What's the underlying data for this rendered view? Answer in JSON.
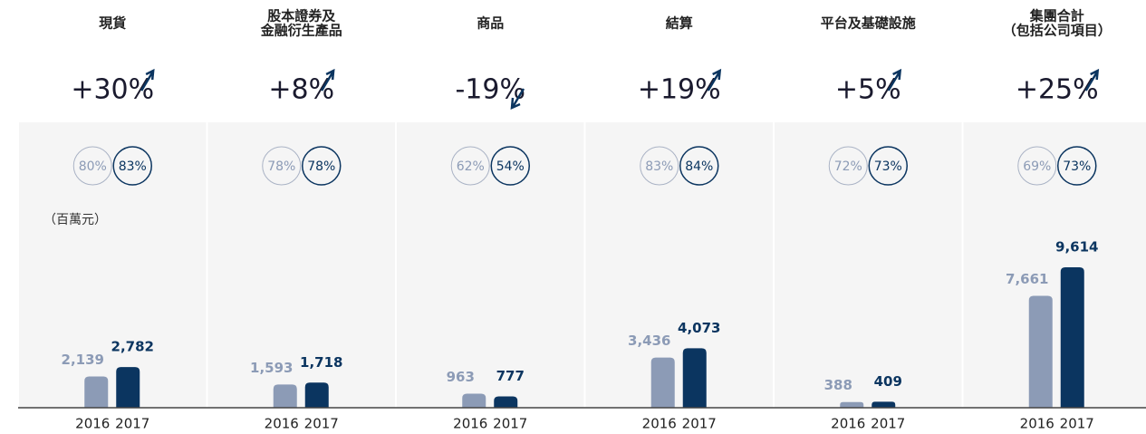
{
  "chart_data": [
    {
      "type": "bar",
      "title": [
        "現貨"
      ],
      "change": "+30%",
      "rings": [
        "80%",
        "83%"
      ],
      "unit": "（百萬元）",
      "categories": [
        "2016",
        "2017"
      ],
      "values": [
        2139,
        2782
      ],
      "value_labels": [
        "2,139",
        "2,782"
      ],
      "colors": [
        "#8c9bb6",
        "#0b3560"
      ]
    },
    {
      "type": "bar",
      "title": [
        "股本證券及",
        "金融衍生產品"
      ],
      "change": "+8%",
      "rings": [
        "78%",
        "78%"
      ],
      "categories": [
        "2016",
        "2017"
      ],
      "values": [
        1593,
        1718
      ],
      "value_labels": [
        "1,593",
        "1,718"
      ],
      "colors": [
        "#8c9bb6",
        "#0b3560"
      ]
    },
    {
      "type": "bar",
      "title": [
        "商品"
      ],
      "change": "-19%",
      "rings": [
        "62%",
        "54%"
      ],
      "categories": [
        "2016",
        "2017"
      ],
      "values": [
        963,
        777
      ],
      "value_labels": [
        "963",
        "777"
      ],
      "colors": [
        "#8c9bb6",
        "#0b3560"
      ]
    },
    {
      "type": "bar",
      "title": [
        "結算"
      ],
      "change": "+19%",
      "rings": [
        "83%",
        "84%"
      ],
      "categories": [
        "2016",
        "2017"
      ],
      "values": [
        3436,
        4073
      ],
      "value_labels": [
        "3,436",
        "4,073"
      ],
      "colors": [
        "#8c9bb6",
        "#0b3560"
      ]
    },
    {
      "type": "bar",
      "title": [
        "平台及基礎設施"
      ],
      "change": "+5%",
      "rings": [
        "72%",
        "73%"
      ],
      "categories": [
        "2016",
        "2017"
      ],
      "values": [
        388,
        409
      ],
      "value_labels": [
        "388",
        "409"
      ],
      "colors": [
        "#8c9bb6",
        "#0b3560"
      ]
    },
    {
      "type": "bar",
      "title": [
        "集團合計",
        "（包括公司項目）"
      ],
      "change": "+25%",
      "rings": [
        "69%",
        "73%"
      ],
      "categories": [
        "2016",
        "2017"
      ],
      "values": [
        7661,
        9614
      ],
      "value_labels": [
        "7,661",
        "9,614"
      ],
      "colors": [
        "#8c9bb6",
        "#0b3560"
      ]
    }
  ]
}
